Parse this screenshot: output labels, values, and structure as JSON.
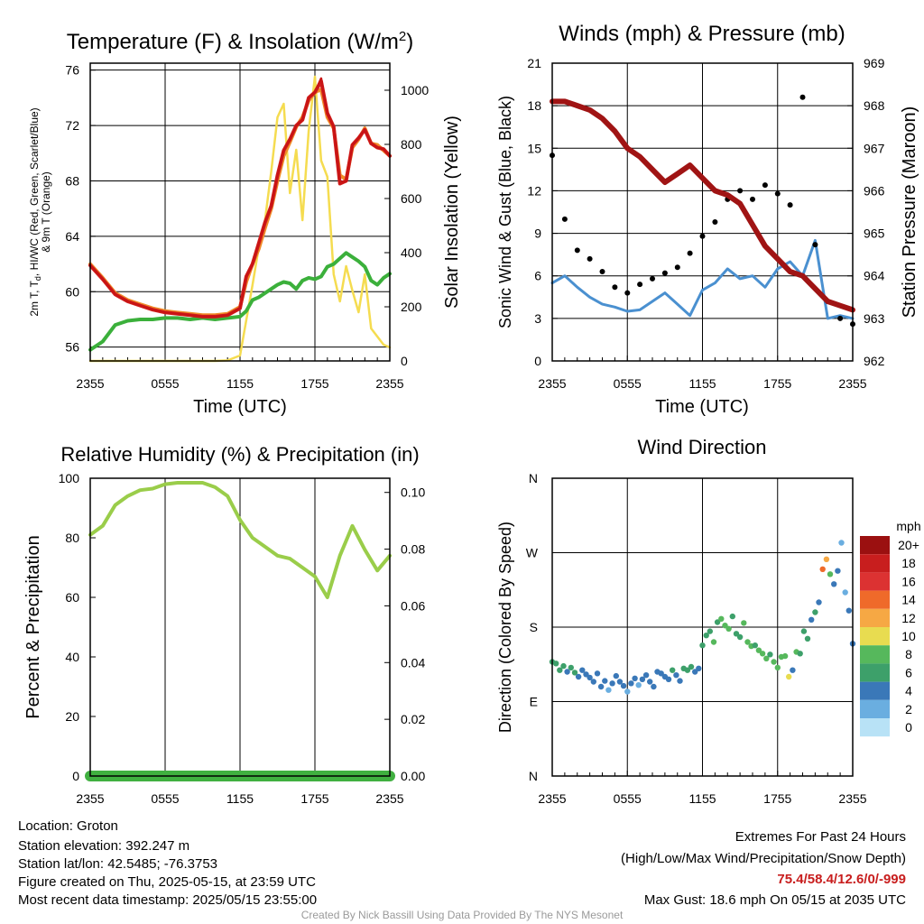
{
  "colors": {
    "temp_red": "#d21f1f",
    "dewpoint_green": "#3bb03b",
    "heat_index_scarlet": "#c81414",
    "temp_9m_orange": "#f08c28",
    "solar_yellow": "#f5dc50",
    "sonic_wind_blue": "#4a90d0",
    "gust_black": "#000000",
    "pressure_maroon": "#a01414",
    "rh_green": "#9acd4a",
    "precip_green": "#40b040",
    "extremes_red": "#c81e1e",
    "credit_gray": "#9a9a9a"
  },
  "chart_data": [
    {
      "id": "temp",
      "type": "line",
      "title": "Temperature (F) & Insolation (W/m²)",
      "xlabel": "Time (UTC)",
      "ylabel": "2m T, Td, HI/WC (Red, Green, Scarlet/Blue) & 9m T (Orange)",
      "y2label": "Solar Insolation (Yellow)",
      "x_ticks": [
        "2355",
        "0555",
        "1155",
        "1755",
        "2355"
      ],
      "ylim": [
        55,
        76.5
      ],
      "y_ticks": [
        56,
        60,
        64,
        68,
        72,
        76
      ],
      "y2lim": [
        0,
        1100
      ],
      "y2_ticks": [
        0,
        200,
        400,
        600,
        800,
        1000
      ],
      "x_hours": [
        0,
        1,
        2,
        3,
        4,
        5,
        6,
        7,
        8,
        9,
        10,
        11,
        12,
        12.5,
        13,
        13.5,
        14,
        14.5,
        15,
        15.5,
        16,
        16.5,
        17,
        17.5,
        18,
        18.5,
        19,
        19.5,
        20,
        20.5,
        21,
        21.5,
        22,
        22.5,
        23,
        23.5,
        24
      ],
      "series": [
        {
          "key": "t9m",
          "color": "#f08c28",
          "values": [
            62.0,
            61.0,
            59.9,
            59.4,
            59.1,
            58.8,
            58.6,
            58.5,
            58.4,
            58.3,
            58.3,
            58.4,
            58.9,
            60.7,
            62.0,
            63.1,
            64.6,
            66.0,
            68.0,
            69.8,
            70.8,
            71.9,
            72.6,
            73.8,
            74.4,
            74.6,
            72.6,
            71.8,
            68.4,
            68.1,
            70.4,
            71.0,
            71.8,
            70.7,
            70.6,
            70.2,
            69.8
          ]
        },
        {
          "key": "t2m",
          "color": "#d21f1f",
          "values": [
            61.9,
            60.9,
            59.8,
            59.3,
            59.0,
            58.7,
            58.5,
            58.4,
            58.3,
            58.2,
            58.2,
            58.3,
            58.8,
            61.1,
            62.0,
            63.5,
            65.0,
            66.2,
            68.4,
            70.2,
            71.0,
            72.0,
            72.4,
            74.0,
            74.4,
            75.2,
            72.9,
            71.9,
            67.8,
            68.0,
            70.6,
            71.1,
            71.7,
            70.7,
            70.4,
            70.3,
            69.8
          ]
        },
        {
          "key": "heat_index",
          "color": "#c81414",
          "values": [
            61.9,
            60.9,
            59.8,
            59.3,
            59.0,
            58.7,
            58.5,
            58.4,
            58.3,
            58.2,
            58.2,
            58.3,
            58.8,
            61.1,
            62.0,
            63.5,
            65.0,
            66.2,
            68.4,
            70.2,
            71.0,
            72.0,
            72.4,
            74.0,
            74.4,
            75.4,
            72.9,
            71.9,
            67.8,
            68.0,
            70.6,
            71.1,
            71.7,
            70.7,
            70.4,
            70.3,
            69.8
          ]
        },
        {
          "key": "dewpoint",
          "color": "#3bb03b",
          "values": [
            55.8,
            56.4,
            57.6,
            57.9,
            58.0,
            58.0,
            58.1,
            58.1,
            58.0,
            58.1,
            58.0,
            58.1,
            58.2,
            58.6,
            59.4,
            59.6,
            59.9,
            60.2,
            60.5,
            60.7,
            60.6,
            60.2,
            60.8,
            61.0,
            60.9,
            61.1,
            61.8,
            62.0,
            62.4,
            62.8,
            62.5,
            62.2,
            61.8,
            60.8,
            60.5,
            61.0,
            61.3
          ]
        },
        {
          "key": "solar",
          "axis": "y2",
          "color": "#f5dc50",
          "values": [
            0,
            0,
            0,
            0,
            0,
            0,
            0,
            0,
            0,
            0,
            0,
            2,
            20,
            150,
            280,
            420,
            520,
            700,
            900,
            950,
            620,
            780,
            520,
            850,
            1050,
            740,
            680,
            320,
            220,
            350,
            260,
            180,
            320,
            120,
            90,
            60,
            50
          ]
        }
      ]
    },
    {
      "id": "wind",
      "type": "line",
      "title": "Winds (mph) & Pressure (mb)",
      "xlabel": "Time (UTC)",
      "ylabel": "Sonic Wind & Gust (Blue, Black)",
      "y2label": "Station Pressure (Maroon)",
      "x_ticks": [
        "2355",
        "0555",
        "1155",
        "1755",
        "2355"
      ],
      "ylim": [
        0,
        21
      ],
      "y_ticks": [
        0,
        3,
        6,
        9,
        12,
        15,
        18,
        21
      ],
      "y2lim": [
        962,
        969
      ],
      "y2_ticks": [
        962,
        963,
        964,
        965,
        966,
        967,
        968,
        969
      ],
      "x_hours": [
        0,
        1,
        2,
        3,
        4,
        5,
        6,
        7,
        8,
        9,
        10,
        11,
        12,
        13,
        14,
        15,
        16,
        17,
        18,
        19,
        20,
        21,
        22,
        23,
        24
      ],
      "series": [
        {
          "key": "sonic_wind",
          "color": "#4a90d0",
          "values": [
            5.5,
            6.0,
            5.2,
            4.5,
            4.0,
            3.8,
            3.5,
            3.6,
            4.2,
            4.8,
            4.0,
            3.2,
            5.0,
            5.5,
            6.5,
            5.8,
            6.0,
            5.2,
            6.5,
            7.0,
            6.0,
            8.5,
            3.0,
            3.2,
            3.0
          ]
        },
        {
          "key": "gust",
          "color": "#000000",
          "values": [
            14.5,
            10.0,
            7.8,
            7.2,
            6.3,
            5.2,
            4.8,
            5.4,
            5.8,
            6.2,
            6.6,
            7.6,
            8.8,
            9.8,
            11.4,
            12.0,
            11.4,
            12.4,
            11.8,
            11.0,
            18.6,
            8.2,
            4.2,
            3.0,
            2.6
          ]
        },
        {
          "key": "pressure",
          "axis": "y2",
          "color": "#a01414",
          "values": [
            968.1,
            968.1,
            968.0,
            967.9,
            967.7,
            967.4,
            967.0,
            966.8,
            966.5,
            966.2,
            966.4,
            966.6,
            966.3,
            966.0,
            965.9,
            965.7,
            965.2,
            964.7,
            964.4,
            964.1,
            964.0,
            963.7,
            963.4,
            963.3,
            963.2
          ]
        }
      ]
    },
    {
      "id": "rh",
      "type": "line",
      "title": "Relative Humidity (%) & Precipitation (in)",
      "xlabel": "",
      "ylabel": "Percent & Precipitation",
      "x_ticks": [
        "2355",
        "0555",
        "1155",
        "1755",
        "2355"
      ],
      "ylim": [
        0,
        100
      ],
      "y_ticks": [
        0,
        20,
        40,
        60,
        80,
        100
      ],
      "y2lim": [
        0,
        0.105
      ],
      "y2_ticks": [
        "0.00",
        "0.02",
        "0.04",
        "0.06",
        "0.08",
        "0.10"
      ],
      "x_hours": [
        0,
        1,
        2,
        3,
        4,
        5,
        6,
        7,
        8,
        9,
        10,
        11,
        12,
        13,
        14,
        15,
        16,
        17,
        18,
        19,
        20,
        21,
        22,
        23,
        24
      ],
      "series": [
        {
          "key": "rh",
          "color": "#9acd4a",
          "values": [
            81,
            84,
            91,
            94,
            96,
            96.5,
            98,
            98.5,
            98.5,
            98.5,
            97,
            94,
            86,
            80,
            77,
            74,
            73,
            70,
            67,
            60,
            74,
            84,
            76,
            69,
            74
          ]
        },
        {
          "key": "precip",
          "axis": "y2",
          "color": "#40b040",
          "values": [
            0,
            0,
            0,
            0,
            0,
            0,
            0,
            0,
            0,
            0,
            0,
            0,
            0,
            0,
            0,
            0,
            0,
            0,
            0,
            0,
            0,
            0,
            0,
            0,
            0
          ]
        }
      ]
    },
    {
      "id": "dir",
      "type": "scatter",
      "title": "Wind Direction",
      "ylabel": "Direction (Colored By Speed)",
      "x_ticks": [
        "2355",
        "0555",
        "1155",
        "1755",
        "2355"
      ],
      "y_ticks": [
        "N",
        "E",
        "S",
        "W",
        "N"
      ],
      "ylim": [
        0,
        360
      ],
      "legend": {
        "unit": "mph",
        "labels": [
          "20+",
          "18",
          "16",
          "14",
          "12",
          "10",
          "8",
          "6",
          "4",
          "2",
          "0"
        ],
        "colors": [
          "#9b1010",
          "#c81e1e",
          "#dc3232",
          "#ef6a2a",
          "#f6a844",
          "#e8dc50",
          "#56b85c",
          "#3da06a",
          "#3a78b8",
          "#6aaee0",
          "#b8e2f6"
        ],
        "placement": "right"
      },
      "x_hours": [
        0.0,
        0.3,
        0.6,
        0.9,
        1.2,
        1.5,
        1.8,
        2.1,
        2.4,
        2.7,
        3.0,
        3.3,
        3.6,
        3.9,
        4.2,
        4.5,
        4.8,
        5.1,
        5.4,
        5.7,
        6.0,
        6.3,
        6.6,
        6.9,
        7.2,
        7.5,
        7.8,
        8.1,
        8.4,
        8.7,
        9.0,
        9.3,
        9.6,
        9.9,
        10.2,
        10.5,
        10.8,
        11.1,
        11.4,
        11.7,
        12.0,
        12.3,
        12.6,
        12.9,
        13.2,
        13.5,
        13.8,
        14.1,
        14.4,
        14.7,
        15.0,
        15.3,
        15.6,
        15.9,
        16.2,
        16.5,
        16.8,
        17.1,
        17.4,
        17.7,
        18.0,
        18.3,
        18.6,
        18.9,
        19.2,
        19.5,
        19.8,
        20.1,
        20.4,
        20.7,
        21.0,
        21.3,
        21.6,
        21.9,
        22.2,
        22.5,
        22.8,
        23.1,
        23.4,
        23.7,
        24.0
      ],
      "values": [
        138,
        136,
        128,
        133,
        126,
        131,
        125,
        120,
        128,
        123,
        119,
        114,
        124,
        108,
        115,
        104,
        112,
        121,
        114,
        109,
        102,
        112,
        118,
        110,
        117,
        122,
        114,
        108,
        126,
        124,
        120,
        117,
        128,
        122,
        115,
        130,
        128,
        132,
        126,
        130,
        158,
        170,
        175,
        162,
        186,
        190,
        182,
        178,
        193,
        172,
        168,
        185,
        162,
        157,
        158,
        152,
        148,
        142,
        147,
        138,
        131,
        144,
        145,
        120,
        128,
        150,
        148,
        175,
        166,
        189,
        198,
        210,
        250,
        262,
        244,
        232,
        248,
        282,
        222,
        200,
        160
      ],
      "speeds": [
        5,
        6,
        6,
        5,
        4,
        6,
        5,
        4,
        4,
        3,
        4,
        3,
        4,
        3,
        4,
        2,
        3,
        4,
        3,
        3,
        2,
        3,
        3,
        2,
        3,
        3,
        4,
        3,
        3,
        4,
        4,
        4,
        5,
        4,
        3,
        5,
        6,
        5,
        4,
        4,
        5,
        5,
        6,
        7,
        6,
        7,
        7,
        8,
        6,
        5,
        6,
        7,
        7,
        7,
        6,
        7,
        8,
        7,
        6,
        7,
        7,
        7,
        8,
        10,
        4,
        7,
        5,
        5,
        6,
        4,
        5,
        4,
        13,
        11,
        8,
        4,
        3,
        2,
        2,
        3,
        3
      ]
    }
  ],
  "footer": {
    "location": "Location: Groton",
    "elevation": "Station elevation: 392.247 m",
    "latlon": "Station lat/lon: 42.5485; -76.3753",
    "created": "Figure created on Thu, 2025-05-15, at 23:59 UTC",
    "recent": "Most recent data timestamp: 2025/05/15 23:55:00",
    "extremes_title": "Extremes For Past 24 Hours",
    "extremes_subtitle": "(High/Low/Max Wind/Precipitation/Snow Depth)",
    "extremes_values": "75.4/58.4/12.6/0/-999",
    "max_gust": "Max Gust: 18.6 mph On 05/15 at 2035 UTC",
    "credit": "Created By Nick Bassill Using Data Provided By The NYS Mesonet"
  }
}
